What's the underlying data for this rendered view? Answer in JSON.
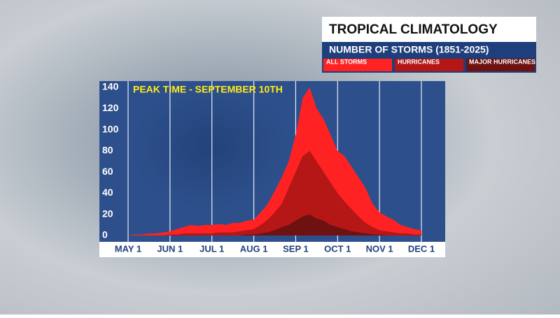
{
  "chart_data": {
    "type": "area",
    "title": "TROPICAL CLIMATOLOGY",
    "subtitle": "NUMBER OF STORMS (1851-2025)",
    "annotation": "PEAK TIME - SEPTEMBER 10TH",
    "categories": [
      "MAY 1",
      null,
      null,
      null,
      null,
      null,
      "JUN 1",
      null,
      null,
      null,
      null,
      null,
      "JUL 1",
      null,
      null,
      null,
      null,
      null,
      "AUG 1",
      null,
      null,
      null,
      null,
      null,
      "SEP 1",
      null,
      null,
      null,
      null,
      null,
      "OCT 1",
      null,
      null,
      null,
      null,
      null,
      "NOV 1",
      null,
      null,
      null,
      null,
      null,
      "DEC 1"
    ],
    "series": [
      {
        "name": "ALL STORMS",
        "color": "#ff2222",
        "values": [
          0,
          1,
          1,
          2,
          2,
          3,
          4,
          6,
          8,
          10,
          9,
          10,
          10,
          11,
          10,
          12,
          12,
          14,
          15,
          22,
          30,
          42,
          55,
          70,
          95,
          130,
          140,
          120,
          110,
          95,
          80,
          75,
          65,
          55,
          45,
          30,
          22,
          18,
          15,
          10,
          8,
          6,
          5
        ]
      },
      {
        "name": "HURRICANES",
        "color": "#b51616",
        "values": [
          0,
          0,
          0,
          0,
          0,
          0,
          1,
          1,
          2,
          2,
          2,
          2,
          2,
          3,
          3,
          3,
          4,
          5,
          6,
          10,
          15,
          22,
          30,
          45,
          60,
          75,
          80,
          70,
          60,
          50,
          40,
          32,
          25,
          18,
          12,
          8,
          5,
          4,
          3,
          2,
          2,
          1,
          1
        ]
      },
      {
        "name": "MAJOR HURRICANES",
        "color": "#6e1111",
        "values": [
          0,
          0,
          0,
          0,
          0,
          0,
          0,
          0,
          0,
          0,
          0,
          0,
          0,
          0,
          0,
          0,
          0,
          1,
          1,
          2,
          3,
          5,
          8,
          10,
          14,
          18,
          20,
          16,
          14,
          10,
          8,
          6,
          4,
          3,
          2,
          1,
          1,
          0,
          0,
          0,
          0,
          0,
          0
        ]
      }
    ],
    "ylim": [
      0,
      140
    ],
    "yticks": [
      0,
      20,
      40,
      60,
      80,
      100,
      120,
      140
    ],
    "grid": true
  }
}
